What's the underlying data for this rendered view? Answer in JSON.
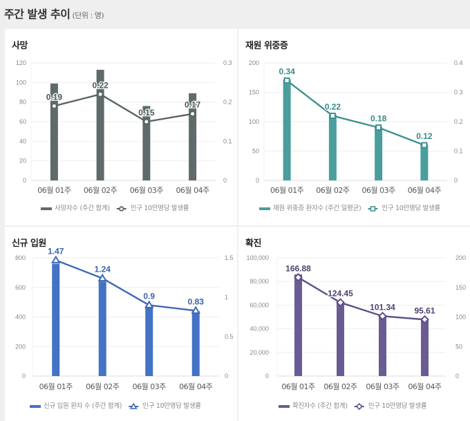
{
  "page": {
    "title": "주간 발생 추이",
    "unit": "(단위 : 명)"
  },
  "chart_data": [
    {
      "id": "death",
      "type": "bar+line",
      "title": "사망",
      "categories": [
        "06월 01주",
        "06월 02주",
        "06월 03주",
        "06월 04주"
      ],
      "series": [
        {
          "name": "사망자수 (주간 합계)",
          "type": "bar",
          "axis": "left",
          "values": [
            99,
            113,
            76,
            89
          ]
        },
        {
          "name": "인구 10만명당 발생률",
          "type": "line",
          "axis": "right",
          "marker": "circle",
          "values": [
            0.19,
            0.22,
            0.15,
            0.17
          ],
          "labels": [
            "0.19",
            "0.22",
            "0.15",
            "0.17"
          ]
        }
      ],
      "ylim_left": [
        0,
        120
      ],
      "yticks_left": [
        "0",
        "20",
        "40",
        "60",
        "80",
        "100",
        "120"
      ],
      "ylim_right": [
        0,
        0.3
      ],
      "yticks_right": [
        "0",
        "0.1",
        "0.2",
        "0.3"
      ],
      "grid": true,
      "legend_position": "bottom",
      "colors": {
        "bar": "#5f6a6a",
        "line": "#5a6464",
        "label": "#4b5454"
      }
    },
    {
      "id": "icu",
      "type": "bar+line",
      "title": "재원 위중증",
      "categories": [
        "06월 01주",
        "06월 02주",
        "06월 03주",
        "06월 04주"
      ],
      "series": [
        {
          "name": "재원 위중증 환자수 (주간 일평균)",
          "type": "bar",
          "axis": "left",
          "values": [
            172,
            112,
            91,
            61
          ]
        },
        {
          "name": "인구 10만명당 발생률",
          "type": "line",
          "axis": "right",
          "marker": "square",
          "values": [
            0.34,
            0.22,
            0.18,
            0.12
          ],
          "labels": [
            "0.34",
            "0.22",
            "0.18",
            "0.12"
          ]
        }
      ],
      "ylim_left": [
        0,
        200
      ],
      "yticks_left": [
        "0",
        "50",
        "100",
        "150",
        "200"
      ],
      "ylim_right": [
        0,
        0.4
      ],
      "yticks_right": [
        "0",
        "0.1",
        "0.2",
        "0.3",
        "0.4"
      ],
      "grid": true,
      "legend_position": "bottom",
      "colors": {
        "bar": "#4a9e9e",
        "line": "#3f9191",
        "label": "#3a8a8a"
      }
    },
    {
      "id": "admission",
      "type": "bar+line",
      "title": "신규 입원",
      "categories": [
        "06월 01주",
        "06월 02주",
        "06월 03주",
        "06월 04주"
      ],
      "series": [
        {
          "name": "신규 입원 환자 수 (주간 합계)",
          "type": "bar",
          "axis": "left",
          "values": [
            760,
            640,
            475,
            440
          ]
        },
        {
          "name": "인구 10만명당 발생률",
          "type": "line",
          "axis": "right",
          "marker": "triangle",
          "values": [
            1.47,
            1.24,
            0.9,
            0.83
          ],
          "labels": [
            "1.47",
            "1.24",
            "0.9",
            "0.83"
          ]
        }
      ],
      "ylim_left": [
        0,
        800
      ],
      "yticks_left": [
        "0",
        "200",
        "400",
        "600",
        "800"
      ],
      "ylim_right": [
        0,
        1.5
      ],
      "yticks_right": [
        "0",
        "0.5",
        "1",
        "1.5"
      ],
      "grid": true,
      "legend_position": "bottom",
      "colors": {
        "bar": "#4472c4",
        "line": "#3d68b5",
        "label": "#3a62aa"
      }
    },
    {
      "id": "confirmed",
      "type": "bar+line",
      "title": "확진",
      "categories": [
        "06월 01주",
        "06월 02주",
        "06월 03주",
        "06월 04주"
      ],
      "series": [
        {
          "name": "확진자수 (주간 합계)",
          "type": "bar",
          "axis": "left",
          "values": [
            86000,
            63000,
            51000,
            48500
          ]
        },
        {
          "name": "인구 10만명당 발생률",
          "type": "line",
          "axis": "right",
          "marker": "diamond",
          "values": [
            166.88,
            124.45,
            101.34,
            95.61
          ],
          "labels": [
            "166.88",
            "124.45",
            "101.34",
            "95.61"
          ]
        }
      ],
      "ylim_left": [
        0,
        100000
      ],
      "yticks_left": [
        "0",
        "20,000",
        "40,000",
        "60,000",
        "80,000",
        "100,000"
      ],
      "ylim_right": [
        0,
        200
      ],
      "yticks_right": [
        "0",
        "50",
        "100",
        "150",
        "200"
      ],
      "grid": true,
      "legend_position": "bottom",
      "colors": {
        "bar": "#6b5b95",
        "line": "#5e4f88",
        "label": "#4e4270"
      }
    }
  ]
}
